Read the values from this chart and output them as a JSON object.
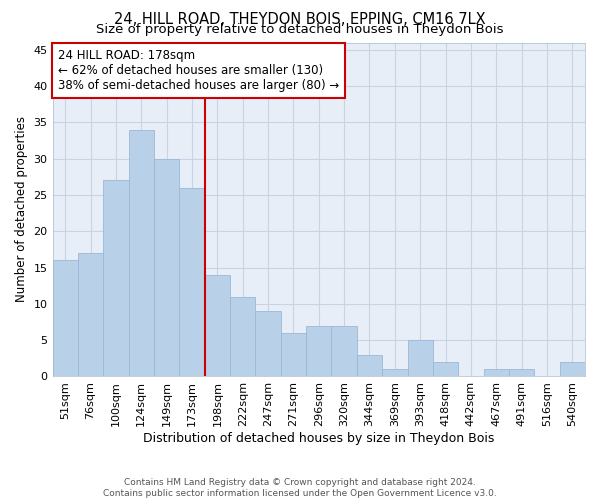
{
  "title": "24, HILL ROAD, THEYDON BOIS, EPPING, CM16 7LX",
  "subtitle": "Size of property relative to detached houses in Theydon Bois",
  "xlabel": "Distribution of detached houses by size in Theydon Bois",
  "ylabel": "Number of detached properties",
  "footer_line1": "Contains HM Land Registry data © Crown copyright and database right 2024.",
  "footer_line2": "Contains public sector information licensed under the Open Government Licence v3.0.",
  "bin_labels": [
    "51sqm",
    "76sqm",
    "100sqm",
    "124sqm",
    "149sqm",
    "173sqm",
    "198sqm",
    "222sqm",
    "247sqm",
    "271sqm",
    "296sqm",
    "320sqm",
    "344sqm",
    "369sqm",
    "393sqm",
    "418sqm",
    "442sqm",
    "467sqm",
    "491sqm",
    "516sqm",
    "540sqm"
  ],
  "bin_values": [
    16,
    17,
    27,
    34,
    30,
    26,
    14,
    11,
    9,
    6,
    7,
    7,
    3,
    1,
    5,
    2,
    0,
    1,
    1,
    0,
    2
  ],
  "bar_color": "#b8d0e8",
  "bar_edge_color": "#9ab8d8",
  "bar_width": 1.0,
  "vline_x": 5.5,
  "vline_color": "#cc0000",
  "annotation_line1": "24 HILL ROAD: 178sqm",
  "annotation_line2": "← 62% of detached houses are smaller (130)",
  "annotation_line3": "38% of semi-detached houses are larger (80) →",
  "annotation_box_color": "#ffffff",
  "annotation_box_edge_color": "#cc0000",
  "ylim": [
    0,
    46
  ],
  "yticks": [
    0,
    5,
    10,
    15,
    20,
    25,
    30,
    35,
    40,
    45
  ],
  "grid_color": "#c8d4e4",
  "bg_color": "#e8eef8",
  "title_fontsize": 10.5,
  "subtitle_fontsize": 9.5,
  "tick_fontsize": 8,
  "ylabel_fontsize": 8.5,
  "xlabel_fontsize": 9,
  "annotation_fontsize": 8.5
}
